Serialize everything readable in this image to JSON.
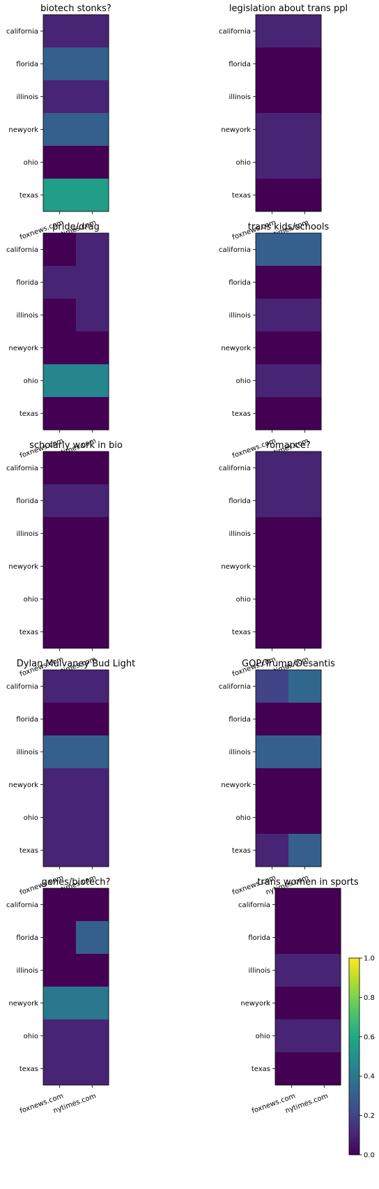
{
  "chart_data": {
    "type": "heatmap",
    "colormap": "viridis",
    "color_range": [
      0.0,
      1.0
    ],
    "rows": [
      "california",
      "florida",
      "illinois",
      "newyork",
      "ohio",
      "texas"
    ],
    "columns": [
      "foxnews.com",
      "nytimes.com"
    ],
    "panels": [
      {
        "title": "biotech stonks?",
        "values": [
          [
            0.1,
            0.1
          ],
          [
            0.3,
            0.3
          ],
          [
            0.1,
            0.1
          ],
          [
            0.3,
            0.3
          ],
          [
            0.0,
            0.0
          ],
          [
            0.55,
            0.55
          ]
        ]
      },
      {
        "title": "legislation about trans ppl",
        "values": [
          [
            0.1,
            0.1
          ],
          [
            0.0,
            0.0
          ],
          [
            0.0,
            0.0
          ],
          [
            0.1,
            0.1
          ],
          [
            0.1,
            0.1
          ],
          [
            0.0,
            0.0
          ]
        ]
      },
      {
        "title": "pride/drag",
        "values": [
          [
            0.0,
            0.1
          ],
          [
            0.1,
            0.1
          ],
          [
            0.0,
            0.1
          ],
          [
            0.0,
            0.0
          ],
          [
            0.45,
            0.45
          ],
          [
            0.0,
            0.0
          ]
        ]
      },
      {
        "title": "trans kids/schools",
        "values": [
          [
            0.3,
            0.3
          ],
          [
            0.0,
            0.0
          ],
          [
            0.1,
            0.1
          ],
          [
            0.0,
            0.0
          ],
          [
            0.1,
            0.1
          ],
          [
            0.0,
            0.0
          ]
        ]
      },
      {
        "title": "scholarly work in bio",
        "values": [
          [
            0.0,
            0.0
          ],
          [
            0.1,
            0.1
          ],
          [
            0.0,
            0.0
          ],
          [
            0.0,
            0.0
          ],
          [
            0.0,
            0.0
          ],
          [
            0.0,
            0.0
          ]
        ]
      },
      {
        "title": "romance?",
        "values": [
          [
            0.1,
            0.1
          ],
          [
            0.1,
            0.1
          ],
          [
            0.0,
            0.0
          ],
          [
            0.0,
            0.0
          ],
          [
            0.0,
            0.0
          ],
          [
            0.0,
            0.0
          ]
        ]
      },
      {
        "title": "Dylan Mulvaney Bud Light",
        "values": [
          [
            0.1,
            0.1
          ],
          [
            0.0,
            0.0
          ],
          [
            0.3,
            0.3
          ],
          [
            0.1,
            0.1
          ],
          [
            0.1,
            0.1
          ],
          [
            0.1,
            0.1
          ]
        ]
      },
      {
        "title": "GOP/Trump/Desantis",
        "values": [
          [
            0.2,
            0.33
          ],
          [
            0.0,
            0.0
          ],
          [
            0.3,
            0.3
          ],
          [
            0.0,
            0.0
          ],
          [
            0.0,
            0.0
          ],
          [
            0.1,
            0.3
          ]
        ]
      },
      {
        "title": "genes/biotech?",
        "values": [
          [
            0.0,
            0.0
          ],
          [
            0.0,
            0.3
          ],
          [
            0.0,
            0.0
          ],
          [
            0.4,
            0.4
          ],
          [
            0.1,
            0.1
          ],
          [
            0.1,
            0.1
          ]
        ]
      },
      {
        "title": "trans women in sports",
        "values": [
          [
            0.0,
            0.0
          ],
          [
            0.0,
            0.0
          ],
          [
            0.1,
            0.1
          ],
          [
            0.0,
            0.0
          ],
          [
            0.1,
            0.1
          ],
          [
            0.0,
            0.0
          ]
        ]
      }
    ],
    "colorbar": {
      "ticks": [
        "0.0",
        "0.2",
        "0.4",
        "0.6",
        "0.8",
        "1.0"
      ],
      "tick_values": [
        0.0,
        0.2,
        0.4,
        0.6,
        0.8,
        1.0
      ]
    }
  }
}
